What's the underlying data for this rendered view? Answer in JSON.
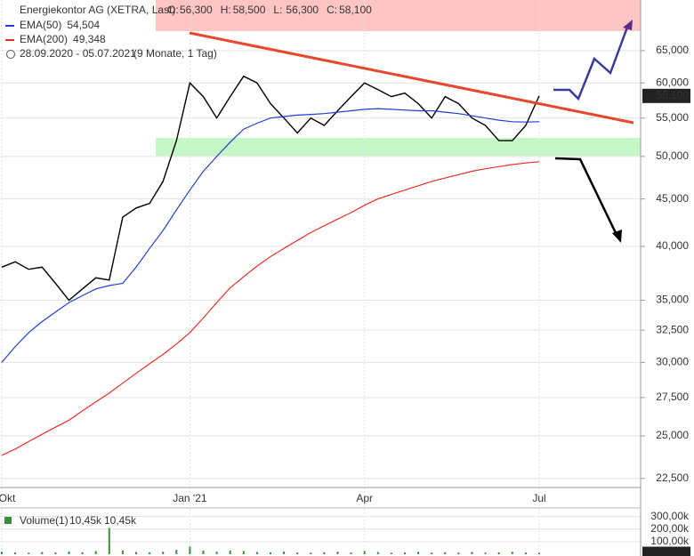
{
  "chart_data": {
    "type": "line",
    "title": "Energiekontor AG (XETRA, Last)",
    "ohlc": [
      {
        "key": "O:",
        "value": 56300,
        "label": "56,300"
      },
      {
        "key": "H:",
        "value": 58500,
        "label": "58,500"
      },
      {
        "key": "L:",
        "value": 56300,
        "label": "56,300"
      },
      {
        "key": "C:",
        "value": 58100,
        "label": "58,100"
      }
    ],
    "date_range": "28.09.2020 - 05.07.2021",
    "period": "(9 Monate, 1 Tag)",
    "categories": [
      "Okt",
      null,
      null,
      null,
      null,
      null,
      null,
      null,
      null,
      null,
      null,
      null,
      null,
      null,
      "Jan '21",
      null,
      null,
      null,
      null,
      null,
      null,
      null,
      null,
      null,
      null,
      null,
      null,
      "Apr",
      null,
      null,
      null,
      null,
      null,
      null,
      null,
      null,
      null,
      null,
      null,
      null,
      "Jul"
    ],
    "series": [
      {
        "color": "#000000",
        "values": [
          38000,
          38500,
          37800,
          38000,
          36500,
          35000,
          36000,
          37000,
          36800,
          43000,
          44000,
          44500,
          47000,
          52000,
          60000,
          58000,
          55000,
          58000,
          61000,
          60000,
          57000,
          55000,
          53000,
          55000,
          54000,
          56000,
          58000,
          60000,
          59000,
          58000,
          58500,
          57000,
          55000,
          58000,
          57000,
          55000,
          54000,
          52000,
          52000,
          54000,
          58100
        ]
      },
      {
        "name": "EMA(50)",
        "color": "#1f3fcf",
        "last": {
          "value": 54504,
          "label": "54,504"
        },
        "values": [
          30000,
          31200,
          32300,
          33200,
          34000,
          34800,
          35400,
          36000,
          36300,
          36500,
          38000,
          39800,
          41600,
          43800,
          46000,
          48200,
          50000,
          51800,
          53500,
          54300,
          55000,
          55200,
          55400,
          55500,
          55600,
          55800,
          56000,
          56200,
          56300,
          56200,
          56100,
          56000,
          56000,
          55800,
          55600,
          55300,
          55000,
          54700,
          54500,
          54450,
          54504
        ]
      },
      {
        "name": "EMA(200)",
        "color": "#e8302a",
        "last": {
          "value": 49348,
          "label": "49,348"
        },
        "values": [
          23830,
          24200,
          24650,
          25100,
          25550,
          26000,
          26600,
          27200,
          27800,
          28500,
          29200,
          29900,
          30600,
          31400,
          32300,
          33500,
          34800,
          36100,
          37100,
          38100,
          39000,
          39800,
          40600,
          41400,
          42100,
          42800,
          43500,
          44300,
          45000,
          45500,
          46000,
          46500,
          47000,
          47400,
          47800,
          48200,
          48500,
          48750,
          49000,
          49200,
          49348
        ]
      }
    ],
    "last_price": {
      "value": 58100,
      "label": "58,100"
    },
    "log_scale": true,
    "grid": true,
    "ylim": [
      22000,
      73700
    ],
    "yticks": [
      {
        "value": 22500,
        "label": "22,500"
      },
      {
        "value": 25000,
        "label": "25,000"
      },
      {
        "value": 27500,
        "label": "27,500"
      },
      {
        "value": 30000,
        "label": "30,000"
      },
      {
        "value": 32500,
        "label": "32,500"
      },
      {
        "value": 35000,
        "label": "35,000"
      },
      {
        "value": 40000,
        "label": "40,000"
      },
      {
        "value": 45000,
        "label": "45,000"
      },
      {
        "value": 50000,
        "label": "50,000"
      },
      {
        "value": 55000,
        "label": "55,000"
      },
      {
        "value": 60000,
        "label": "60,000"
      },
      {
        "value": 65000,
        "label": "65,000"
      }
    ],
    "volume": {
      "title": "Volume(1)",
      "color": "#3a8f3a",
      "last": {
        "value": 10450,
        "label": "10,45k"
      },
      "average": {
        "value": 10450,
        "label": "10,45k"
      },
      "values": [
        20000,
        15000,
        12000,
        18000,
        14000,
        22000,
        16000,
        25000,
        210000,
        30000,
        18000,
        15000,
        20000,
        35000,
        60000,
        30000,
        20000,
        30000,
        25000,
        18000,
        15000,
        22000,
        14000,
        12000,
        16000,
        20000,
        14000,
        25000,
        18000,
        12000,
        15000,
        20000,
        13000,
        16000,
        14000,
        18000,
        12000,
        15000,
        20000,
        14000,
        10450
      ],
      "ylim": [
        0,
        340000
      ],
      "yticks": [
        {
          "value": 100000,
          "label": "100,00k"
        },
        {
          "value": 200000,
          "label": "200,00k"
        },
        {
          "value": 300000,
          "label": "300,00k"
        }
      ]
    }
  }
}
